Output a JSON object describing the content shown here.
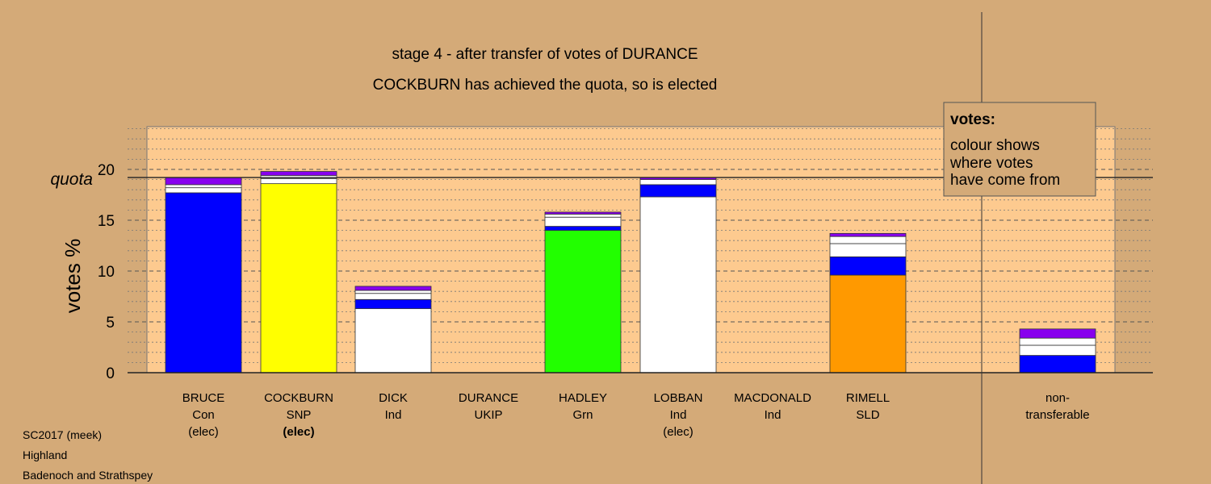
{
  "title": "stage 4 - after transfer of votes of DURANCE",
  "subtitle": "COCKBURN has achieved the quota, so is elected",
  "footer": [
    "SC2017 (meek)",
    "Highland",
    "Badenoch and Strathspey"
  ],
  "legend": {
    "heading": "votes:",
    "lines": [
      "colour shows",
      "where votes",
      "have come from"
    ]
  },
  "colors": {
    "background": "#d4aa78",
    "plot": "#fdca8f",
    "grid_major": "#555555",
    "grid_minor": "#777777"
  },
  "chart_data": {
    "type": "bar",
    "stacked": true,
    "ylabel": "votes %",
    "ylim": [
      0,
      24
    ],
    "yticks": [
      0,
      5,
      10,
      15,
      20
    ],
    "quota": 19.2,
    "quota_label": "quota",
    "grid": true,
    "legend_position": "top-right",
    "candidates": [
      {
        "label": [
          "BRUCE",
          "Con",
          "(elec)"
        ],
        "bold_line": -1,
        "segments": [
          {
            "value": 17.7,
            "color": "#0000ff"
          },
          {
            "value": 0.5,
            "color": "#ffffff"
          },
          {
            "value": 0.3,
            "color": "#ffffff"
          },
          {
            "value": 0.7,
            "color": "#8800ee"
          }
        ]
      },
      {
        "label": [
          "COCKBURN",
          "SNP",
          "(elec)"
        ],
        "bold_line": 2,
        "segments": [
          {
            "value": 18.6,
            "color": "#ffff00"
          },
          {
            "value": 0.5,
            "color": "#ffffff"
          },
          {
            "value": 0.3,
            "color": "#ffffff"
          },
          {
            "value": 0.4,
            "color": "#8800ee"
          }
        ]
      },
      {
        "label": [
          "DICK",
          "Ind"
        ],
        "bold_line": -1,
        "segments": [
          {
            "value": 6.3,
            "color": "#ffffff"
          },
          {
            "value": 0.9,
            "color": "#0000ff"
          },
          {
            "value": 0.6,
            "color": "#ffffff"
          },
          {
            "value": 0.3,
            "color": "#ffffff"
          },
          {
            "value": 0.4,
            "color": "#8800ee"
          }
        ]
      },
      {
        "label": [
          "DURANCE",
          "UKIP"
        ],
        "bold_line": -1,
        "segments": []
      },
      {
        "label": [
          "HADLEY",
          "Grn"
        ],
        "bold_line": -1,
        "segments": [
          {
            "value": 14.0,
            "color": "#22ff00"
          },
          {
            "value": 0.4,
            "color": "#0000ff"
          },
          {
            "value": 0.9,
            "color": "#ffffff"
          },
          {
            "value": 0.3,
            "color": "#ffffff"
          },
          {
            "value": 0.2,
            "color": "#8800ee"
          }
        ]
      },
      {
        "label": [
          "LOBBAN",
          "Ind",
          "(elec)"
        ],
        "bold_line": -1,
        "segments": [
          {
            "value": 17.3,
            "color": "#ffffff"
          },
          {
            "value": 1.2,
            "color": "#0000ff"
          },
          {
            "value": 0.5,
            "color": "#ffffff"
          },
          {
            "value": 0.2,
            "color": "#8800ee"
          }
        ]
      },
      {
        "label": [
          "MACDONALD",
          "Ind"
        ],
        "bold_line": -1,
        "segments": []
      },
      {
        "label": [
          "RIMELL",
          "SLD"
        ],
        "bold_line": -1,
        "segments": [
          {
            "value": 9.6,
            "color": "#ff9900"
          },
          {
            "value": 1.8,
            "color": "#0000ff"
          },
          {
            "value": 1.3,
            "color": "#ffffff"
          },
          {
            "value": 0.7,
            "color": "#ffffff"
          },
          {
            "value": 0.3,
            "color": "#8800ee"
          }
        ]
      },
      {
        "label": [
          "non-",
          "transferable"
        ],
        "bold_line": -1,
        "separate": true,
        "segments": [
          {
            "value": 1.7,
            "color": "#0000ff"
          },
          {
            "value": 1.0,
            "color": "#ffffff"
          },
          {
            "value": 0.7,
            "color": "#ffffff"
          },
          {
            "value": 0.9,
            "color": "#8800ee"
          }
        ]
      }
    ]
  }
}
